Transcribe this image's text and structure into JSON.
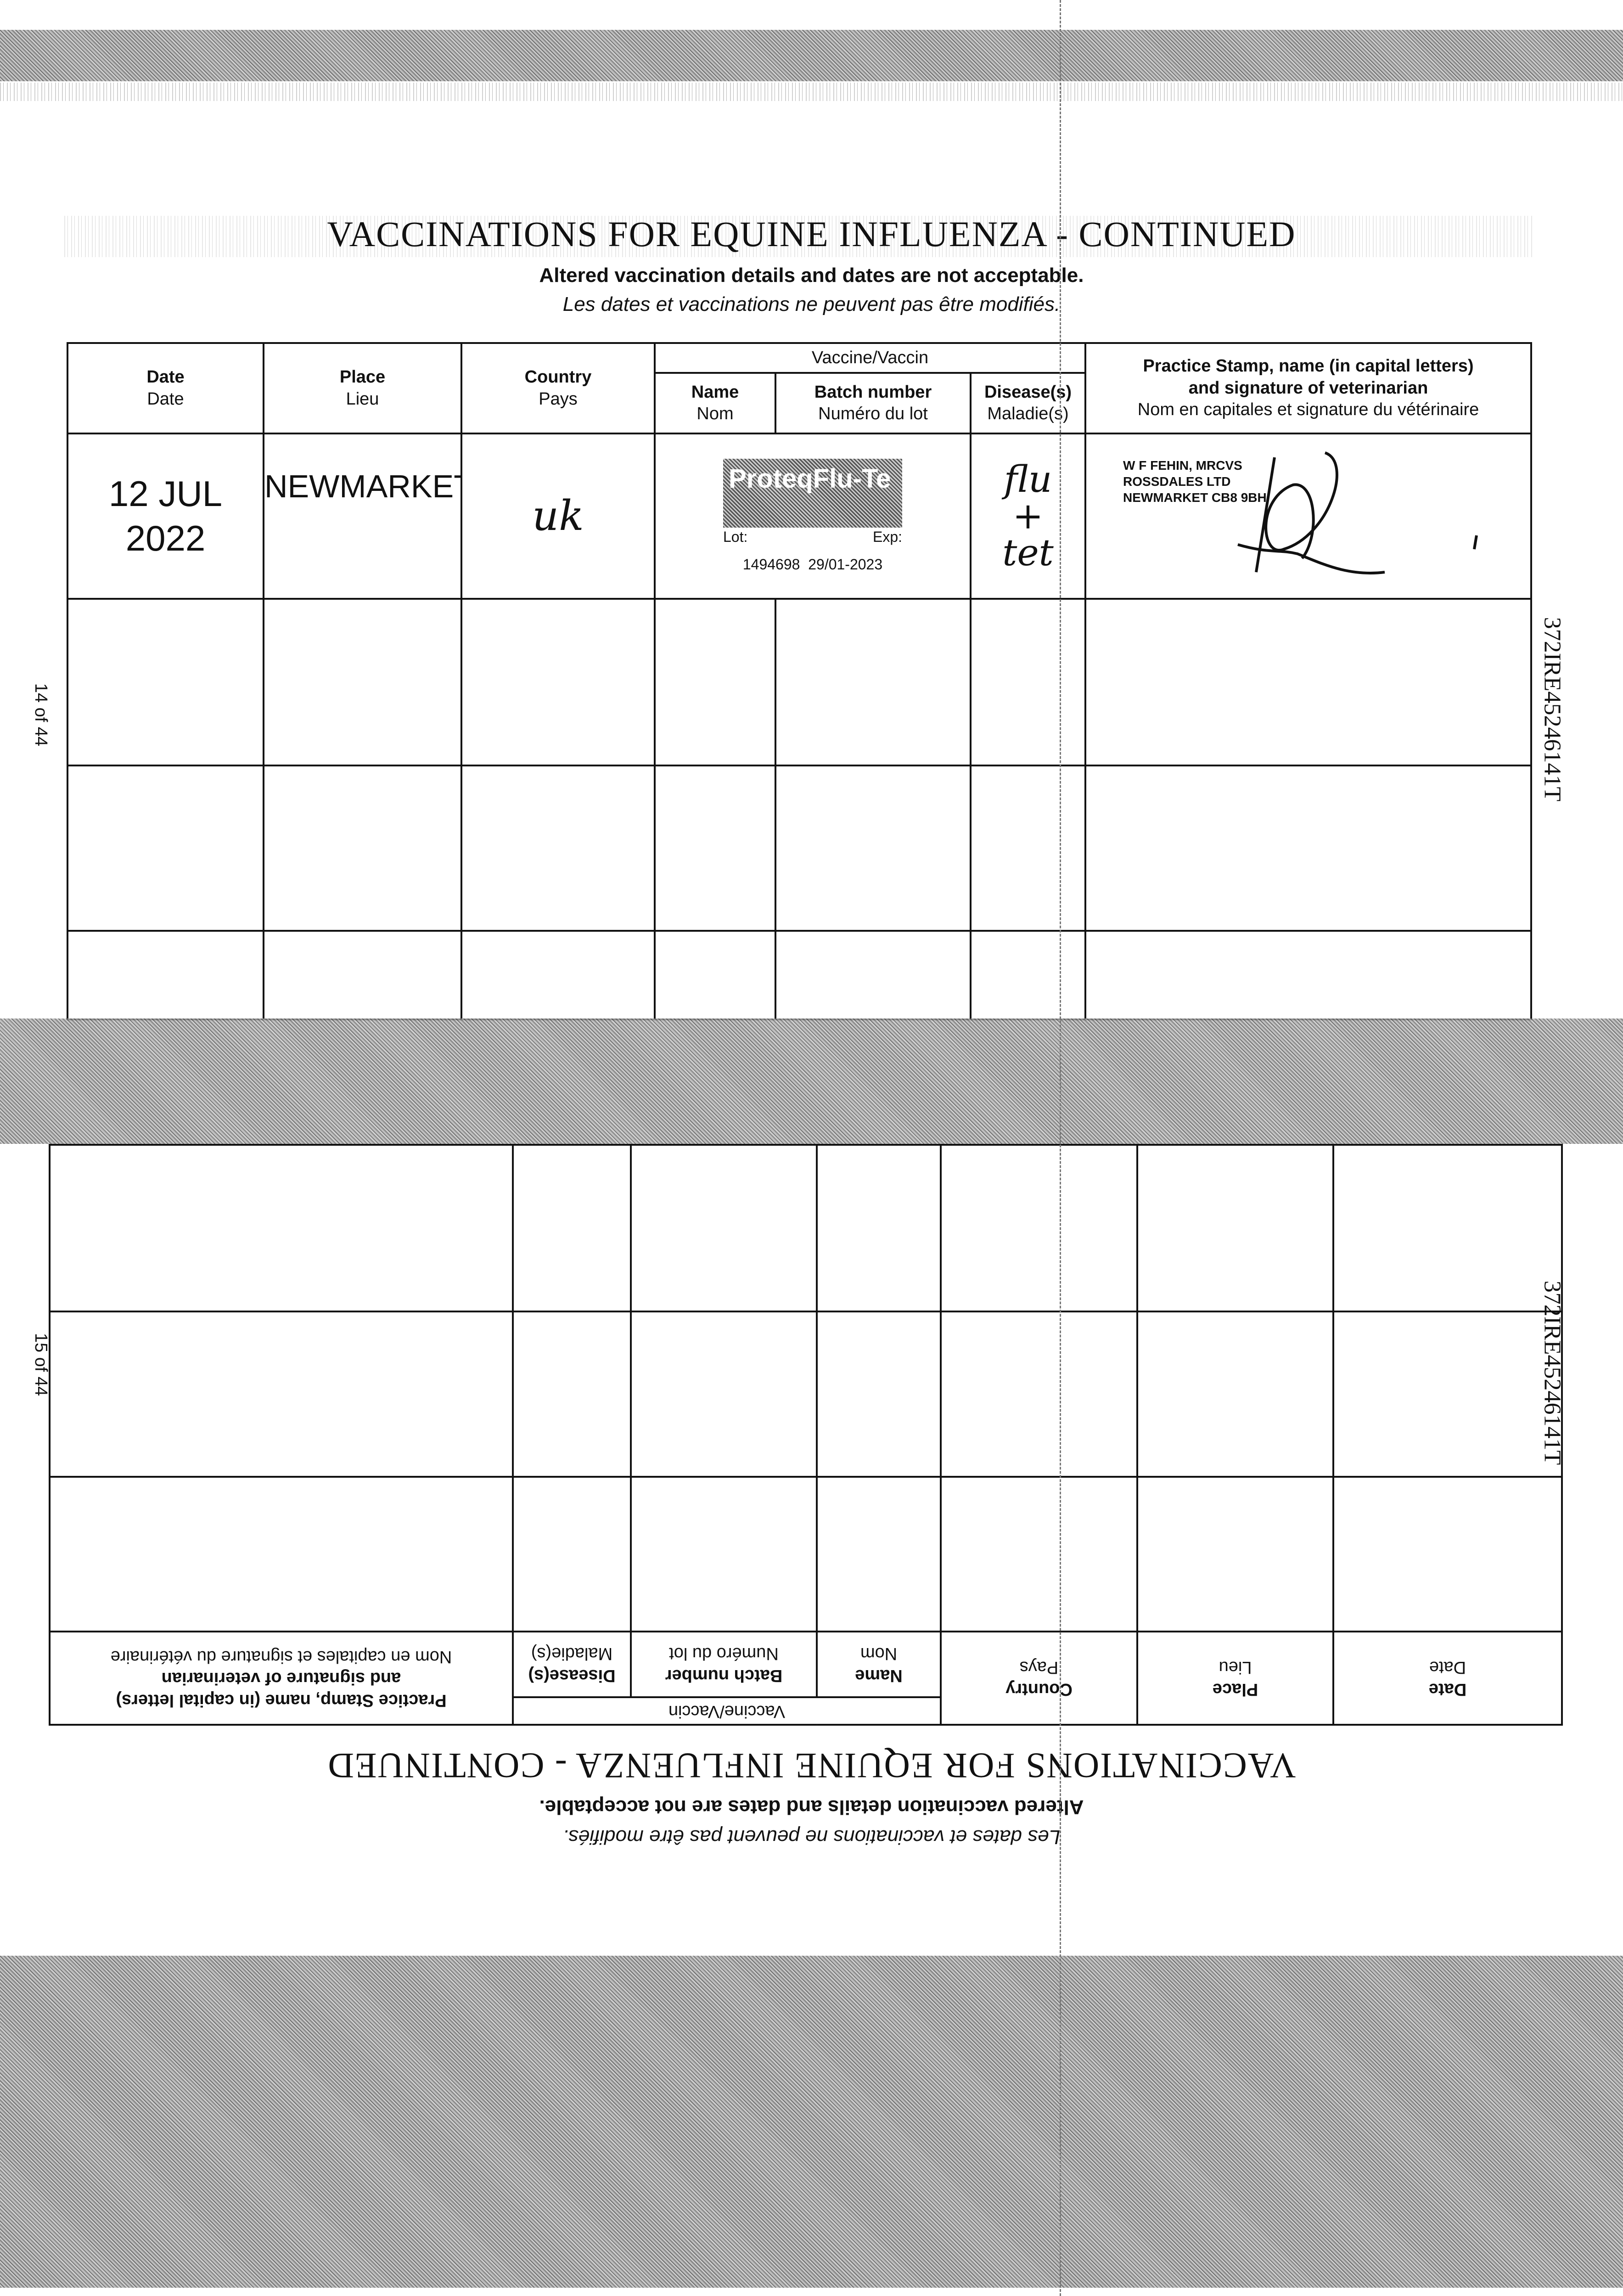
{
  "form": {
    "title": "VACCINATIONS FOR EQUINE INFLUENZA - CONTINUED",
    "notice_en": "Altered vaccination details and dates are not acceptable.",
    "notice_fr": "Les dates et vaccinations ne peuvent pas être modifiés.",
    "headers": {
      "date_en": "Date",
      "date_fr": "Date",
      "place_en": "Place",
      "place_fr": "Lieu",
      "country_en": "Country",
      "country_fr": "Pays",
      "vaccine": "Vaccine/Vaccin",
      "name_en": "Name",
      "name_fr": "Nom",
      "batch_en": "Batch number",
      "batch_fr": "Numéro du lot",
      "disease_en": "Disease(s)",
      "disease_fr": "Maladie(s)",
      "stamp_en_1": "Practice Stamp, name (in capital letters)",
      "stamp_en_2": "and signature of veterinarian",
      "stamp_fr": "Nom en capitales et signature du vétérinaire"
    }
  },
  "entries": [
    {
      "date": "12 JUL 2022",
      "place": "NEWMARKET",
      "country": "uk",
      "vaccine_label": "ProteqFlu-Te",
      "label_lot": "Lot:",
      "label_exp": "Exp:",
      "batch": "1494698",
      "expiry": "29/01-2023",
      "disease_1": "flu",
      "disease_2": "+",
      "disease_3": "tet",
      "stamp_1": "W F FEHIN, MRCVS",
      "stamp_2": "ROSSDALES LTD",
      "stamp_3": "NEWMARKET CB8 9BH"
    }
  ],
  "page_top": "14 of 44",
  "page_bottom": "15 of 44",
  "passport_id": "372IRE45246141T"
}
